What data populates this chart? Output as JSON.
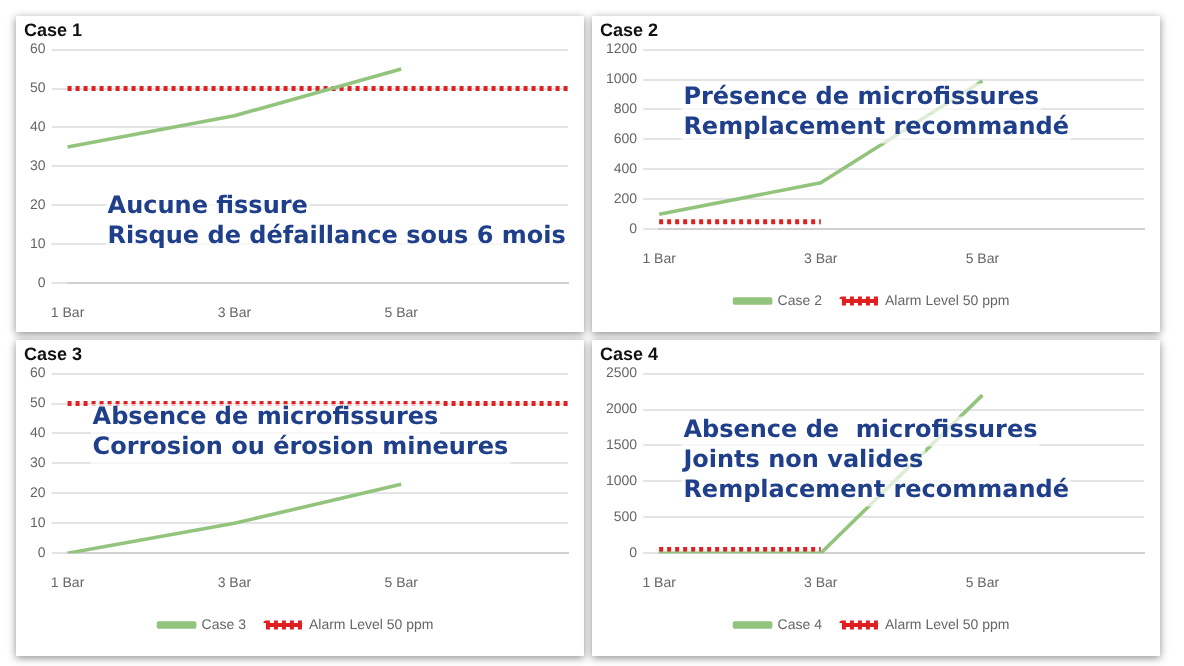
{
  "chart_data": [
    {
      "type": "line",
      "title": "Case 1",
      "categories": [
        "1 Bar",
        "3 Bar",
        "5 Bar",
        null
      ],
      "series": [
        {
          "color": "#93c47d",
          "values": [
            35,
            43,
            55,
            null
          ]
        },
        {
          "color": "#e02020",
          "values": [
            50,
            50,
            50,
            50
          ],
          "line_style": "dotted"
        }
      ],
      "ylim": [
        0,
        60
      ],
      "yticks": [
        0,
        10,
        20,
        30,
        40,
        50,
        60
      ],
      "grid": "y",
      "legend": false,
      "marker": "none",
      "annotations": [
        "Aucune fissure",
        "Risque de défaillance sous 6 mois"
      ]
    },
    {
      "type": "line",
      "title": "Case 2",
      "categories": [
        "1 Bar",
        "3 Bar",
        "5 Bar",
        null
      ],
      "series": [
        {
          "name": "Case 2",
          "color": "#93c47d",
          "values": [
            100,
            310,
            990,
            null
          ]
        },
        {
          "name": "Alarm Level 50 ppm",
          "color": "#e02020",
          "values": [
            50,
            50,
            null,
            null
          ],
          "line_style": "dotted"
        }
      ],
      "ylim": [
        0,
        1200
      ],
      "yticks": [
        0,
        200,
        400,
        600,
        800,
        1000,
        1200
      ],
      "grid": "y",
      "legend": "bottom",
      "marker": "none",
      "annotations": [
        "Présence de microfissures",
        "Remplacement recommandé"
      ]
    },
    {
      "type": "line",
      "title": "Case 3",
      "categories": [
        "1 Bar",
        "3 Bar",
        "5 Bar",
        null
      ],
      "series": [
        {
          "name": "Case 3",
          "color": "#93c47d",
          "values": [
            0,
            10,
            23,
            null
          ]
        },
        {
          "name": "Alarm Level 50 ppm",
          "color": "#e02020",
          "values": [
            50,
            50,
            50,
            50
          ],
          "line_style": "dotted"
        }
      ],
      "ylim": [
        0,
        60
      ],
      "yticks": [
        0,
        10,
        20,
        30,
        40,
        50,
        60
      ],
      "grid": "y",
      "legend": "bottom",
      "marker": "none",
      "annotations": [
        "Absence de microfissures",
        "Corrosion ou érosion mineures"
      ]
    },
    {
      "type": "line",
      "title": "Case 4",
      "categories": [
        "1 Bar",
        "3 Bar",
        "5 Bar",
        null
      ],
      "series": [
        {
          "name": "Case 4",
          "color": "#93c47d",
          "values": [
            0,
            0,
            2200,
            null
          ]
        },
        {
          "name": "Alarm Level 50 ppm",
          "color": "#e02020",
          "values": [
            50,
            50,
            null,
            null
          ],
          "line_style": "dotted"
        }
      ],
      "ylim": [
        0,
        2500
      ],
      "yticks": [
        0,
        500,
        1000,
        1500,
        2000,
        2500
      ],
      "grid": "y",
      "legend": "bottom",
      "marker": "none",
      "annotations": [
        "Absence de  microfissures",
        "Joints non valides",
        "Remplacement recommandé"
      ]
    }
  ]
}
